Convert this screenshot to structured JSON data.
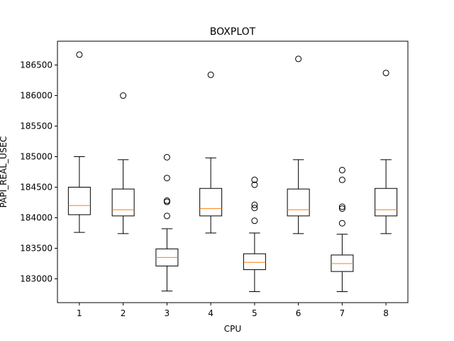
{
  "chart_data": {
    "type": "boxplot",
    "title": "BOXPLOT",
    "xlabel": "CPU",
    "ylabel": "PAPI_REAL_USEC",
    "categories": [
      "1",
      "2",
      "3",
      "4",
      "5",
      "6",
      "7",
      "8"
    ],
    "ylim": [
      182610,
      186890
    ],
    "yticks": [
      183000,
      183500,
      184000,
      184500,
      185000,
      185500,
      186000,
      186500
    ],
    "ytick_labels": [
      "183000",
      "183500",
      "184000",
      "184500",
      "185000",
      "185500",
      "186000",
      "186500"
    ],
    "median_color": "#ff7f0e",
    "box_color": "#000000",
    "boxes": [
      {
        "cpu": "1",
        "whisker_low": 183760,
        "q1": 184050,
        "median": 184200,
        "q3": 184500,
        "whisker_high": 185000,
        "outliers": [
          186670
        ]
      },
      {
        "cpu": "2",
        "whisker_low": 183740,
        "q1": 184030,
        "median": 184130,
        "q3": 184470,
        "whisker_high": 184950,
        "outliers": [
          186000
        ]
      },
      {
        "cpu": "3",
        "whisker_low": 182800,
        "q1": 183210,
        "median": 183350,
        "q3": 183490,
        "whisker_high": 183820,
        "outliers": [
          184030,
          184260,
          184280,
          184650,
          184990
        ]
      },
      {
        "cpu": "4",
        "whisker_low": 183750,
        "q1": 184030,
        "median": 184150,
        "q3": 184480,
        "whisker_high": 184980,
        "outliers": [
          186340
        ]
      },
      {
        "cpu": "5",
        "whisker_low": 182790,
        "q1": 183150,
        "median": 183270,
        "q3": 183410,
        "whisker_high": 183750,
        "outliers": [
          183950,
          184160,
          184210,
          184540,
          184620
        ]
      },
      {
        "cpu": "6",
        "whisker_low": 183740,
        "q1": 184030,
        "median": 184130,
        "q3": 184470,
        "whisker_high": 184950,
        "outliers": [
          186600
        ]
      },
      {
        "cpu": "7",
        "whisker_low": 182790,
        "q1": 183120,
        "median": 183250,
        "q3": 183390,
        "whisker_high": 183730,
        "outliers": [
          183910,
          184150,
          184180,
          184620,
          184780
        ]
      },
      {
        "cpu": "8",
        "whisker_low": 183740,
        "q1": 184030,
        "median": 184130,
        "q3": 184480,
        "whisker_high": 184950,
        "outliers": [
          186370
        ]
      }
    ]
  }
}
